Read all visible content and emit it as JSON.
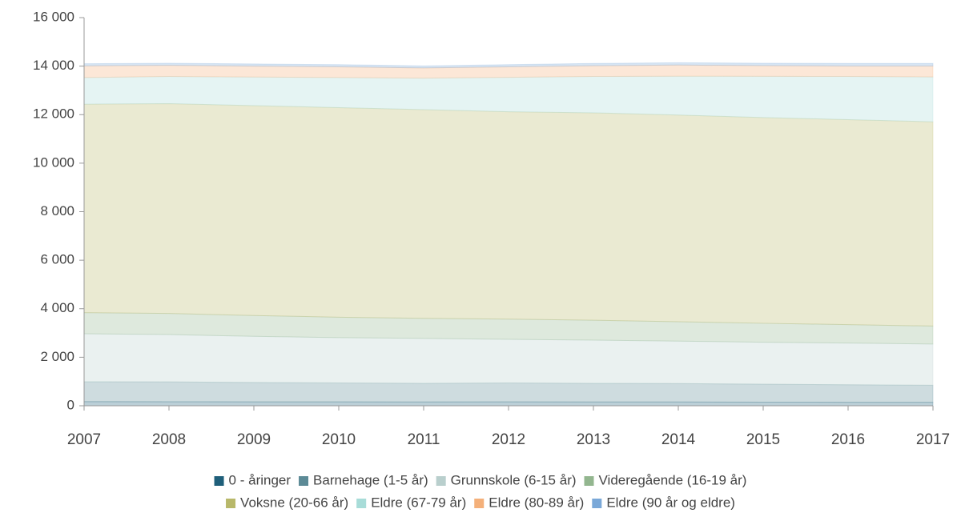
{
  "chart_data": {
    "type": "stacked_area",
    "categories": [
      "2007",
      "2008",
      "2009",
      "2010",
      "2011",
      "2012",
      "2013",
      "2014",
      "2015",
      "2016",
      "2017"
    ],
    "ylim": [
      0,
      16000
    ],
    "yticks": [
      0,
      {
        "value": 2000,
        "label": "2 000"
      },
      {
        "value": 4000,
        "label": "4 000"
      },
      {
        "value": 6000,
        "label": "6 000"
      },
      {
        "value": 8000,
        "label": "8 000"
      },
      {
        "value": 10000,
        "label": "10 000"
      },
      {
        "value": 12000,
        "label": "12 000"
      },
      {
        "value": 14000,
        "label": "14 000"
      },
      {
        "value": 16000,
        "label": "16 000"
      }
    ],
    "grid": false,
    "legend": "bottom",
    "series": [
      {
        "name": "0 - åringer",
        "color": "#1f5f7a",
        "values": [
          170,
          165,
          160,
          160,
          155,
          160,
          155,
          155,
          150,
          145,
          145
        ]
      },
      {
        "name": "Barnehage (1-5 år)",
        "color": "#5c8a96",
        "values": [
          820,
          820,
          800,
          780,
          770,
          780,
          770,
          760,
          740,
          720,
          700
        ]
      },
      {
        "name": "Grunnskole (6-15 år)",
        "color": "#b9cfcd",
        "values": [
          1980,
          1950,
          1900,
          1870,
          1850,
          1800,
          1780,
          1750,
          1730,
          1720,
          1700
        ]
      },
      {
        "name": "Videregående (16-19 år)",
        "color": "#93b68f",
        "values": [
          870,
          870,
          860,
          840,
          830,
          830,
          820,
          800,
          780,
          760,
          740
        ]
      },
      {
        "name": "Voksne (20-66 år)",
        "color": "#b8b86a",
        "values": [
          8590,
          8650,
          8650,
          8640,
          8600,
          8550,
          8550,
          8520,
          8480,
          8450,
          8420
        ]
      },
      {
        "name": "Eldre (67-79 år)",
        "color": "#a8dcd8",
        "values": [
          1100,
          1120,
          1180,
          1240,
          1300,
          1420,
          1500,
          1600,
          1700,
          1780,
          1850
        ]
      },
      {
        "name": "Eldre (80-89 år)",
        "color": "#f4b07a",
        "values": [
          480,
          460,
          450,
          440,
          420,
          430,
          440,
          460,
          440,
          430,
          450
        ]
      },
      {
        "name": "Eldre (90 år og eldre)",
        "color": "#7aa8d8",
        "values": [
          90,
          85,
          90,
          90,
          85,
          90,
          95,
          95,
          100,
          105,
          105
        ]
      }
    ]
  }
}
